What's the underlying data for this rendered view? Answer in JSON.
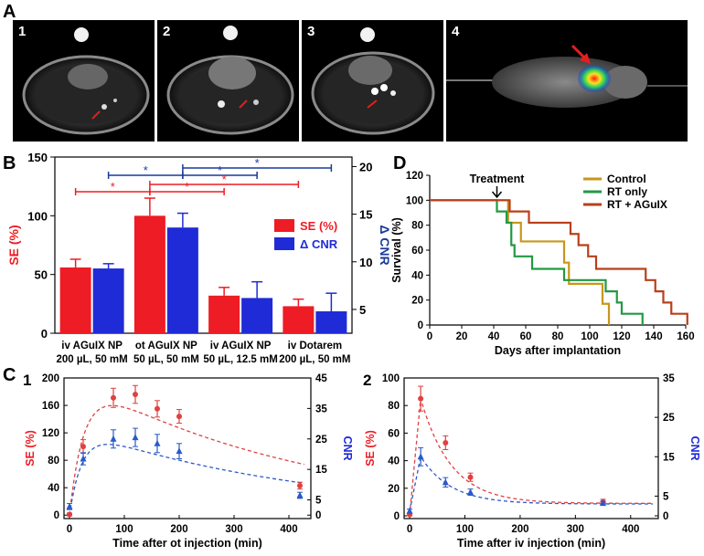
{
  "panel_labels": {
    "A": "A",
    "B": "B",
    "C": "C",
    "D": "D"
  },
  "images": [
    {
      "label": "1",
      "desc": "mri-axial-slice"
    },
    {
      "label": "2",
      "desc": "mri-axial-slice"
    },
    {
      "label": "3",
      "desc": "mri-axial-slice"
    },
    {
      "label": "4",
      "desc": "fluorescence-mouse"
    }
  ],
  "colors": {
    "red": "#ee1c24",
    "blue": "#1f2bd6",
    "blue_dark": "#1a3a9c",
    "control": "#c8961a",
    "rt_only": "#229944",
    "rt_aguix": "#b8401a",
    "c1_red": "#e04040",
    "c1_blue": "#2a5ac8"
  },
  "chart_data": [
    {
      "id": "B",
      "type": "bar",
      "ylabel_left": "SE (%)",
      "ylabel_right": "Δ CNR",
      "ylim_left": [
        0,
        150
      ],
      "ylim_right": [
        2.5,
        21
      ],
      "yticks_left": [
        0,
        50,
        100,
        150
      ],
      "yticks_right": [
        5,
        10,
        15,
        20
      ],
      "categories": [
        [
          "iv AGuIX NP",
          "200 µL, 50 mM"
        ],
        [
          "ot AGuIX NP",
          "50 µL, 50 mM"
        ],
        [
          "iv AGuIX NP",
          "50 µL, 12.5 mM"
        ],
        [
          "iv Dotarem",
          "200 µL, 50 mM"
        ]
      ],
      "series": [
        {
          "name": "SE (%)",
          "axis": "left",
          "values": [
            56,
            100,
            32,
            23
          ],
          "errors": [
            7,
            15,
            7,
            6
          ]
        },
        {
          "name": "Δ CNR",
          "axis": "right",
          "values": [
            9.3,
            13.6,
            6.2,
            4.8
          ],
          "errors": [
            0.5,
            1.5,
            1.7,
            1.9
          ]
        }
      ],
      "significance_marker": "*"
    },
    {
      "id": "D",
      "type": "line",
      "ylabel": "Survival (%)",
      "xlabel": "Days after implantation",
      "xlim": [
        0,
        160
      ],
      "ylim": [
        0,
        120
      ],
      "xticks": [
        0,
        20,
        40,
        60,
        80,
        100,
        120,
        140,
        160
      ],
      "yticks": [
        0,
        20,
        40,
        60,
        80,
        100,
        120
      ],
      "annotation": "Treatment",
      "annotation_x": 42,
      "series": [
        {
          "name": "Control",
          "points": [
            [
              0,
              100
            ],
            [
              49,
              100
            ],
            [
              49,
              82
            ],
            [
              57,
              82
            ],
            [
              57,
              67
            ],
            [
              84,
              67
            ],
            [
              84,
              50
            ],
            [
              87,
              50
            ],
            [
              87,
              33
            ],
            [
              108,
              33
            ],
            [
              108,
              17
            ],
            [
              112,
              17
            ],
            [
              112,
              0
            ]
          ]
        },
        {
          "name": "RT only",
          "points": [
            [
              0,
              100
            ],
            [
              42,
              100
            ],
            [
              42,
              91
            ],
            [
              48,
              91
            ],
            [
              48,
              82
            ],
            [
              51,
              82
            ],
            [
              51,
              64
            ],
            [
              53,
              64
            ],
            [
              53,
              55
            ],
            [
              64,
              55
            ],
            [
              64,
              45
            ],
            [
              84,
              45
            ],
            [
              84,
              36
            ],
            [
              110,
              36
            ],
            [
              110,
              27
            ],
            [
              117,
              27
            ],
            [
              117,
              18
            ],
            [
              120,
              18
            ],
            [
              120,
              9
            ],
            [
              133,
              9
            ],
            [
              133,
              0
            ]
          ]
        },
        {
          "name": "RT + AGuIX",
          "points": [
            [
              0,
              100
            ],
            [
              50,
              100
            ],
            [
              50,
              91
            ],
            [
              62,
              91
            ],
            [
              62,
              82
            ],
            [
              88,
              82
            ],
            [
              88,
              73
            ],
            [
              93,
              73
            ],
            [
              93,
              64
            ],
            [
              99,
              64
            ],
            [
              99,
              55
            ],
            [
              104,
              55
            ],
            [
              104,
              45
            ],
            [
              135,
              45
            ],
            [
              135,
              36
            ],
            [
              141,
              36
            ],
            [
              141,
              27
            ],
            [
              146,
              27
            ],
            [
              146,
              18
            ],
            [
              151,
              18
            ],
            [
              151,
              9
            ],
            [
              161,
              9
            ],
            [
              161,
              0
            ]
          ]
        }
      ]
    },
    {
      "id": "C1",
      "type": "scatter",
      "panel_number": "1",
      "xlabel": "Time after ot injection (min)",
      "ylabel_left": "SE (%)",
      "ylabel_right": "CNR",
      "xlim": [
        -10,
        440
      ],
      "ylim_left": [
        -5,
        200
      ],
      "ylim_right": [
        -1.125,
        45
      ],
      "xticks": [
        0,
        100,
        200,
        300,
        400
      ],
      "yticks_left": [
        0,
        40,
        80,
        120,
        160,
        200
      ],
      "yticks_right": [
        0,
        5,
        15,
        25,
        35,
        45
      ],
      "series": [
        {
          "name": "SE (%)",
          "axis": "left",
          "x": [
            0,
            25,
            80,
            120,
            160,
            200,
            420
          ],
          "y": [
            1,
            100,
            171,
            176,
            155,
            144,
            43
          ],
          "errors": [
            2,
            10,
            14,
            13,
            12,
            10,
            5
          ]
        },
        {
          "name": "CNR",
          "axis": "right",
          "x": [
            0,
            25,
            80,
            120,
            160,
            200,
            420
          ],
          "y": [
            2.8,
            18.5,
            25,
            25.5,
            23.5,
            21,
            6.5
          ],
          "errors": [
            1,
            2,
            3,
            3,
            3,
            2.5,
            1
          ]
        }
      ]
    },
    {
      "id": "C2",
      "type": "scatter",
      "panel_number": "2",
      "xlabel": "Time after iv injection (min)",
      "ylabel_left": "SE (%)",
      "ylabel_right": "CNR",
      "xlim": [
        -10,
        450
      ],
      "ylim_left": [
        -2,
        100
      ],
      "ylim_right": [
        -0.7,
        35
      ],
      "xticks": [
        0,
        100,
        200,
        300,
        400
      ],
      "yticks_left": [
        0,
        20,
        40,
        60,
        80,
        100
      ],
      "yticks_right": [
        0,
        5,
        15,
        25,
        35
      ],
      "series": [
        {
          "name": "SE (%)",
          "axis": "left",
          "x": [
            0,
            20,
            65,
            110,
            350
          ],
          "y": [
            1,
            85,
            53,
            28,
            10
          ],
          "errors": [
            1,
            9,
            5,
            3,
            2
          ]
        },
        {
          "name": "CNR",
          "axis": "right",
          "x": [
            0,
            20,
            65,
            110,
            350
          ],
          "y": [
            1.2,
            15,
            8.5,
            6,
            3.2
          ],
          "errors": [
            0.5,
            2.3,
            1.2,
            0.8,
            0.5
          ]
        }
      ]
    }
  ]
}
